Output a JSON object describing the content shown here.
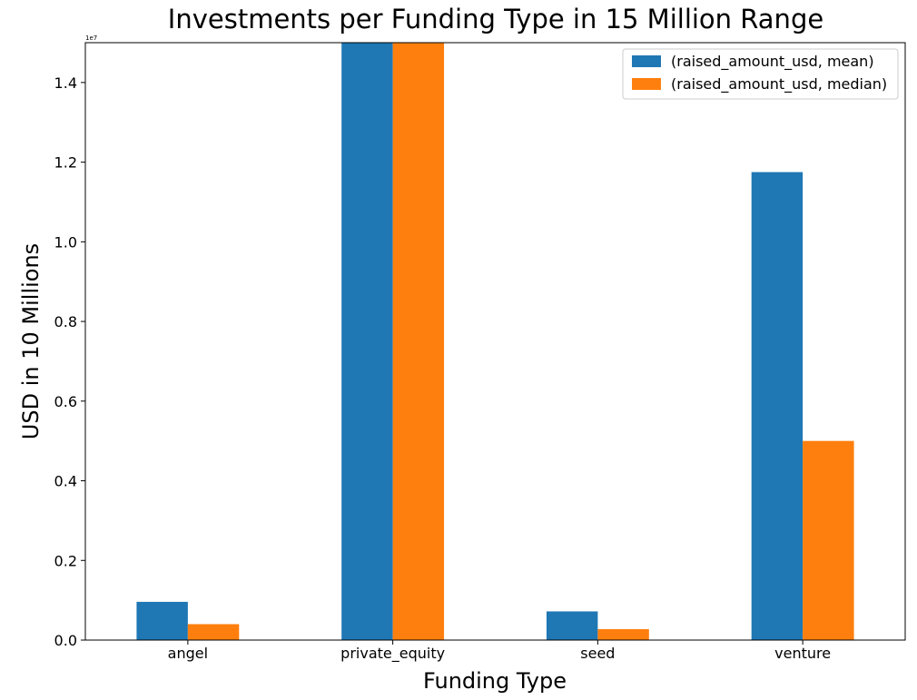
{
  "chart_data": {
    "type": "bar",
    "title": "Investments per Funding Type in 15 Million Range",
    "xlabel": "Funding Type",
    "ylabel": "USD in 10 Millions",
    "y_offset_label": "1e7",
    "y_scale": 10000000,
    "ylim": [
      0,
      15000000
    ],
    "yticks": [
      {
        "value": 0,
        "label": "0.0"
      },
      {
        "value": 2000000,
        "label": "0.2"
      },
      {
        "value": 4000000,
        "label": "0.4"
      },
      {
        "value": 6000000,
        "label": "0.6"
      },
      {
        "value": 8000000,
        "label": "0.8"
      },
      {
        "value": 10000000,
        "label": "1.0"
      },
      {
        "value": 12000000,
        "label": "1.2"
      },
      {
        "value": 14000000,
        "label": "1.4"
      }
    ],
    "categories": [
      "angel",
      "private_equity",
      "seed",
      "venture"
    ],
    "series": [
      {
        "name": "(raised_amount_usd, mean)",
        "color": "#1f77b4",
        "values": [
          960000,
          15000000,
          720000,
          11750000
        ]
      },
      {
        "name": "(raised_amount_usd, median)",
        "color": "#ff7f0e",
        "values": [
          400000,
          15000000,
          275000,
          5000000
        ]
      }
    ],
    "legend_position": "upper right",
    "grid": false
  }
}
